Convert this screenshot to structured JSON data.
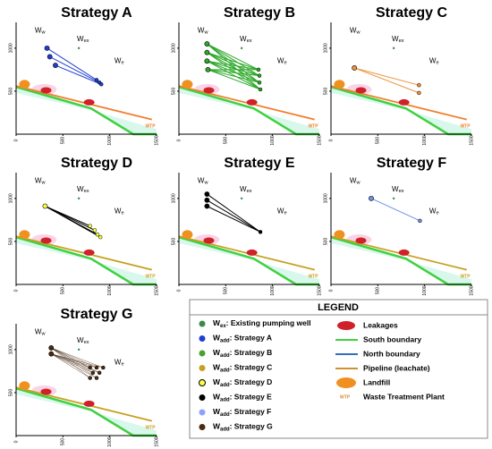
{
  "map_labels": {
    "ww": {
      "main": "W",
      "sub": "w"
    },
    "wex": {
      "main": "W",
      "sub": "ex"
    },
    "we": {
      "main": "W",
      "sub": "e"
    },
    "wtp": "WTP"
  },
  "chart_data": [
    {
      "type": "wells",
      "title": "Strategy A",
      "xlim": [
        0,
        1500
      ],
      "ylim": [
        0,
        1300
      ],
      "xticks": [
        0,
        500,
        1000,
        1500
      ],
      "yticks": [
        500,
        1000
      ],
      "pipeline_color": "#f07f2a",
      "color": "#1f3fd0",
      "connect": "pairs",
      "x": [
        330,
        360,
        420
      ],
      "y": [
        1000,
        900,
        800
      ],
      "target_x": [
        860,
        890,
        910
      ],
      "target_y": [
        630,
        600,
        580
      ]
    },
    {
      "type": "wells",
      "title": "Strategy B",
      "xlim": [
        0,
        1500
      ],
      "ylim": [
        0,
        1300
      ],
      "xticks": [
        0,
        500,
        1000,
        1500
      ],
      "yticks": [
        500,
        1000
      ],
      "pipeline_color": "#f07f2a",
      "color": "#2ea82a",
      "connect": "all",
      "x": [
        300,
        300,
        300,
        310
      ],
      "y": [
        1050,
        950,
        850,
        750
      ],
      "target_x": [
        850,
        860,
        860,
        870
      ],
      "target_y": [
        750,
        680,
        600,
        520
      ]
    },
    {
      "type": "wells",
      "title": "Strategy C",
      "xlim": [
        0,
        1500
      ],
      "ylim": [
        0,
        1300
      ],
      "xticks": [
        0,
        500,
        1000,
        1500
      ],
      "yticks": [
        500,
        1000
      ],
      "pipeline_color": "#f07f2a",
      "color": "#f0923a",
      "connect": "all",
      "x": [
        250
      ],
      "y": [
        770
      ],
      "target_x": [
        940,
        940
      ],
      "target_y": [
        570,
        480
      ]
    },
    {
      "type": "wells",
      "title": "Strategy D",
      "xlim": [
        0,
        1500
      ],
      "ylim": [
        0,
        1300
      ],
      "xticks": [
        0,
        500,
        1000,
        1500
      ],
      "yticks": [
        500,
        1000
      ],
      "pipeline_color": "#c8a020",
      "color": "#ffff40",
      "connect": "all",
      "x": [
        310
      ],
      "y": [
        910
      ],
      "target_x": [
        790,
        840,
        870,
        900
      ],
      "target_y": [
        680,
        630,
        580,
        550
      ]
    },
    {
      "type": "wells",
      "title": "Strategy E",
      "xlim": [
        0,
        1500
      ],
      "ylim": [
        0,
        1300
      ],
      "xticks": [
        0,
        500,
        1000,
        1500
      ],
      "yticks": [
        500,
        1000
      ],
      "pipeline_color": "#c8a020",
      "color": "#000000",
      "connect": "all",
      "x": [
        300,
        300,
        300
      ],
      "y": [
        1050,
        980,
        910
      ],
      "target_x": [
        870
      ],
      "target_y": [
        610
      ]
    },
    {
      "type": "wells",
      "title": "Strategy F",
      "xlim": [
        0,
        1500
      ],
      "ylim": [
        0,
        1300
      ],
      "xticks": [
        0,
        500,
        1000,
        1500
      ],
      "yticks": [
        500,
        1000
      ],
      "pipeline_color": "#c8a020",
      "color": "#6f8fe8",
      "connect": "all",
      "x": [
        430
      ],
      "y": [
        1000
      ],
      "target_x": [
        950
      ],
      "target_y": [
        740
      ]
    },
    {
      "type": "wells",
      "title": "Strategy G",
      "xlim": [
        0,
        1500
      ],
      "ylim": [
        0,
        1300
      ],
      "xticks": [
        0,
        500,
        1000,
        1500
      ],
      "yticks": [
        500,
        1000
      ],
      "pipeline_color": "#c8a020",
      "color": "#4a2a10",
      "connect": "all",
      "x": [
        375,
        375
      ],
      "y": [
        1020,
        950
      ],
      "target_x": [
        790,
        860,
        930,
        820,
        890,
        790,
        860
      ],
      "target_y": [
        790,
        790,
        790,
        730,
        730,
        670,
        670
      ]
    }
  ],
  "legend": {
    "title": "LEGEND",
    "wells": [
      {
        "main": "W",
        "sub": "ex",
        "text": ": Existing pumping well",
        "color": "#3a8a4a"
      },
      {
        "main": "W",
        "sub": "add",
        "text": ": Strategy A",
        "color": "#1f3fd0"
      },
      {
        "main": "W",
        "sub": "add",
        "text": ": Strategy B",
        "color": "#4aa030"
      },
      {
        "main": "W",
        "sub": "add",
        "text": ": Strategy C",
        "color": "#c8a020"
      },
      {
        "main": "W",
        "sub": "add",
        "text": ": Strategy D",
        "color": "#ffff40"
      },
      {
        "main": "W",
        "sub": "add",
        "text": ": Strategy E",
        "color": "#000000"
      },
      {
        "main": "W",
        "sub": "add",
        "text": ": Strategy F",
        "color": "#8fa0ff"
      },
      {
        "main": "W",
        "sub": "add",
        "text": ": Strategy G",
        "color": "#4a2a10"
      }
    ],
    "features": [
      "Leakages",
      "South boundary",
      "North boundary",
      "Pipeline (leachate)",
      "Landfill"
    ],
    "wtp_text": "Waste Treatment Plant"
  }
}
